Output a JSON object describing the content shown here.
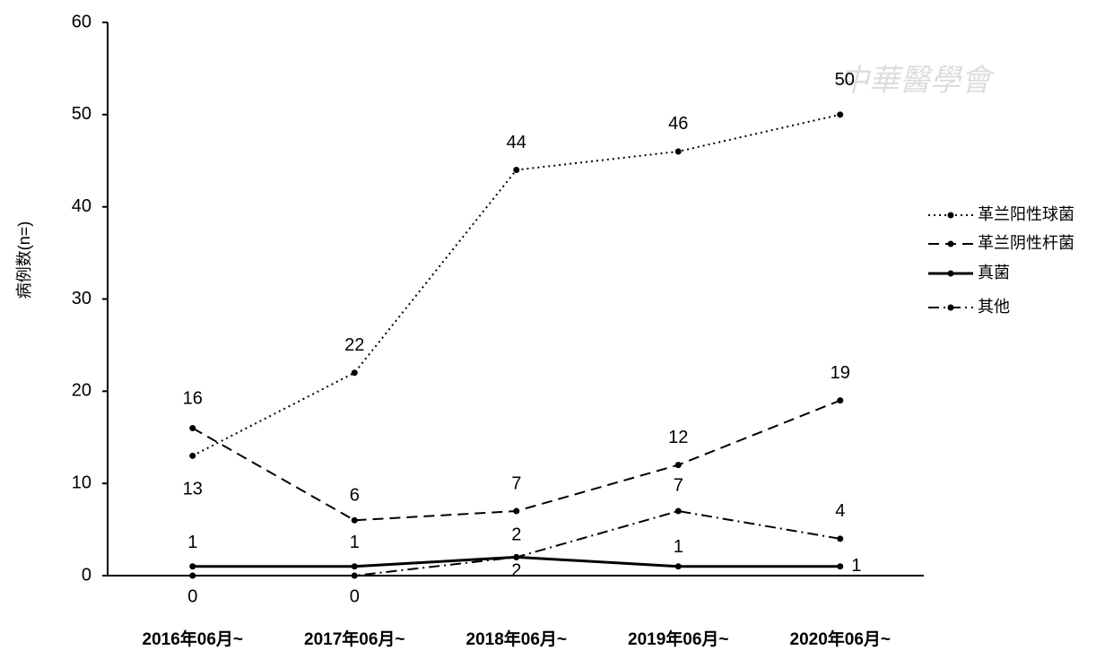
{
  "chart_data": {
    "type": "line",
    "ylabel": "病例数(n=)",
    "watermark": "中華醫學會",
    "categories": [
      "2016年06月~",
      "2017年06月~",
      "2018年06月~",
      "2019年06月~",
      "2020年06月~"
    ],
    "series": [
      {
        "name": "革兰阳性球菌",
        "color": "#000000",
        "style": "dotted",
        "values": [
          13,
          22,
          44,
          46,
          50
        ]
      },
      {
        "name": "革兰阴性杆菌",
        "color": "#000000",
        "style": "dashed",
        "values": [
          16,
          6,
          7,
          12,
          19
        ]
      },
      {
        "name": "真菌",
        "color": "#000000",
        "style": "solid",
        "values": [
          1,
          1,
          2,
          1,
          1
        ]
      },
      {
        "name": "其他",
        "color": "#000000",
        "style": "dashdot",
        "values": [
          0,
          0,
          2,
          7,
          4
        ]
      }
    ],
    "ylim": [
      0,
      60
    ],
    "yticks": [
      0,
      10,
      20,
      30,
      40,
      50,
      60
    ],
    "grid": false,
    "legend": "right"
  }
}
